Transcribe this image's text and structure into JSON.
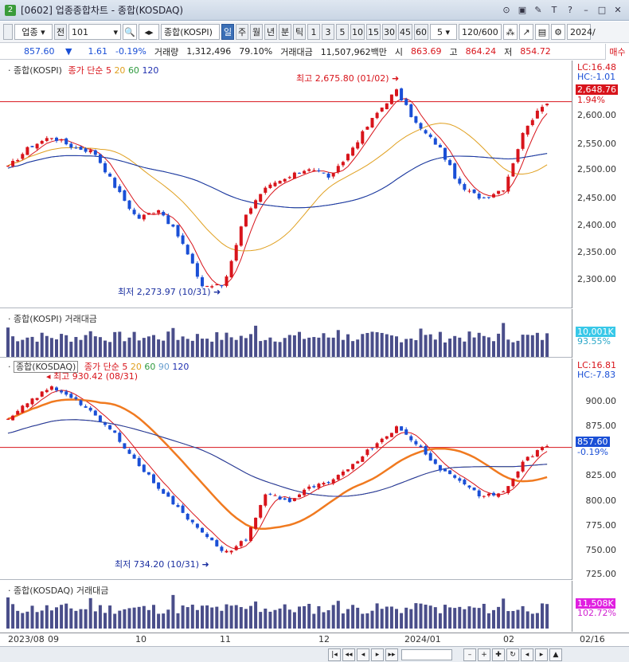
{
  "window": {
    "number": "2",
    "title": "[0602] 업종종합차트 - 종합(KOSDAQ)"
  },
  "toolbar": {
    "market": "업종",
    "all_label": "전",
    "code": "101",
    "index_name": "종합(KOSPI)",
    "periods": [
      "일",
      "주",
      "월",
      "년",
      "분",
      "틱"
    ],
    "minutes": [
      "1",
      "3",
      "5",
      "10",
      "15",
      "30",
      "45",
      "60"
    ],
    "count_value": "5",
    "range": "120/600",
    "date": "2024/",
    "trade_btn": "매수"
  },
  "info": {
    "price": "857.60",
    "change": "1.61",
    "pct": "-0.19%",
    "vol_label": "거래량",
    "vol": "1,312,496",
    "vol_ratio": "79.10%",
    "amt_label": "거래대금",
    "amt": "11,507,962백만",
    "open_label": "시",
    "open": "863.69",
    "high_label": "고",
    "high": "864.24",
    "low_label": "저",
    "low": "854.72"
  },
  "kospi": {
    "title": "종합(KOSPI)",
    "ma_label": "종가 단순",
    "ma_periods": [
      "5",
      "20",
      "60",
      "120"
    ],
    "ma_colors": [
      "#d8141b",
      "#e0a020",
      "#2e9a3e",
      "#2030b0"
    ],
    "lc": "LC:16.48",
    "hc": "HC:-1.01",
    "last": "2,648.76",
    "last_pct": "1.94%",
    "max_label": "최고 2,675.80 (01/02)",
    "min_label": "최저 2,273.97 (10/31)",
    "ticks": [
      "2,600.00",
      "2,550.00",
      "2,500.00",
      "2,450.00",
      "2,400.00",
      "2,350.00",
      "2,300.00"
    ]
  },
  "kospi_vol": {
    "title": "종합(KOSPI) 거래대금",
    "value": "10,001K",
    "pct": "93.55%"
  },
  "kosdaq": {
    "title": "종합(KOSDAQ)",
    "ma_label": "종가 단순",
    "ma_periods": [
      "5",
      "20",
      "60",
      "90",
      "120"
    ],
    "ma_colors": [
      "#d8141b",
      "#e0a020",
      "#2e9a3e",
      "#6aa0d0",
      "#2030b0"
    ],
    "lc": "LC:16.81",
    "hc": "HC:-7.83",
    "last": "857.60",
    "last_pct": "-0.19%",
    "max_label": "최고 930.42 (08/31)",
    "min_label": "최저 734.20 (10/31)",
    "ticks": [
      "900.00",
      "875.00",
      "850.00",
      "825.00",
      "800.00",
      "775.00",
      "750.00",
      "725.00"
    ]
  },
  "kosdaq_vol": {
    "title": "종합(KOSDAQ) 거래대금",
    "value": "11,508K",
    "pct": "102.72%"
  },
  "xaxis": {
    "labels": [
      "2023/08",
      "09",
      "10",
      "11",
      "12",
      "2024/01",
      "02"
    ],
    "cursor_date": "02/16"
  }
}
